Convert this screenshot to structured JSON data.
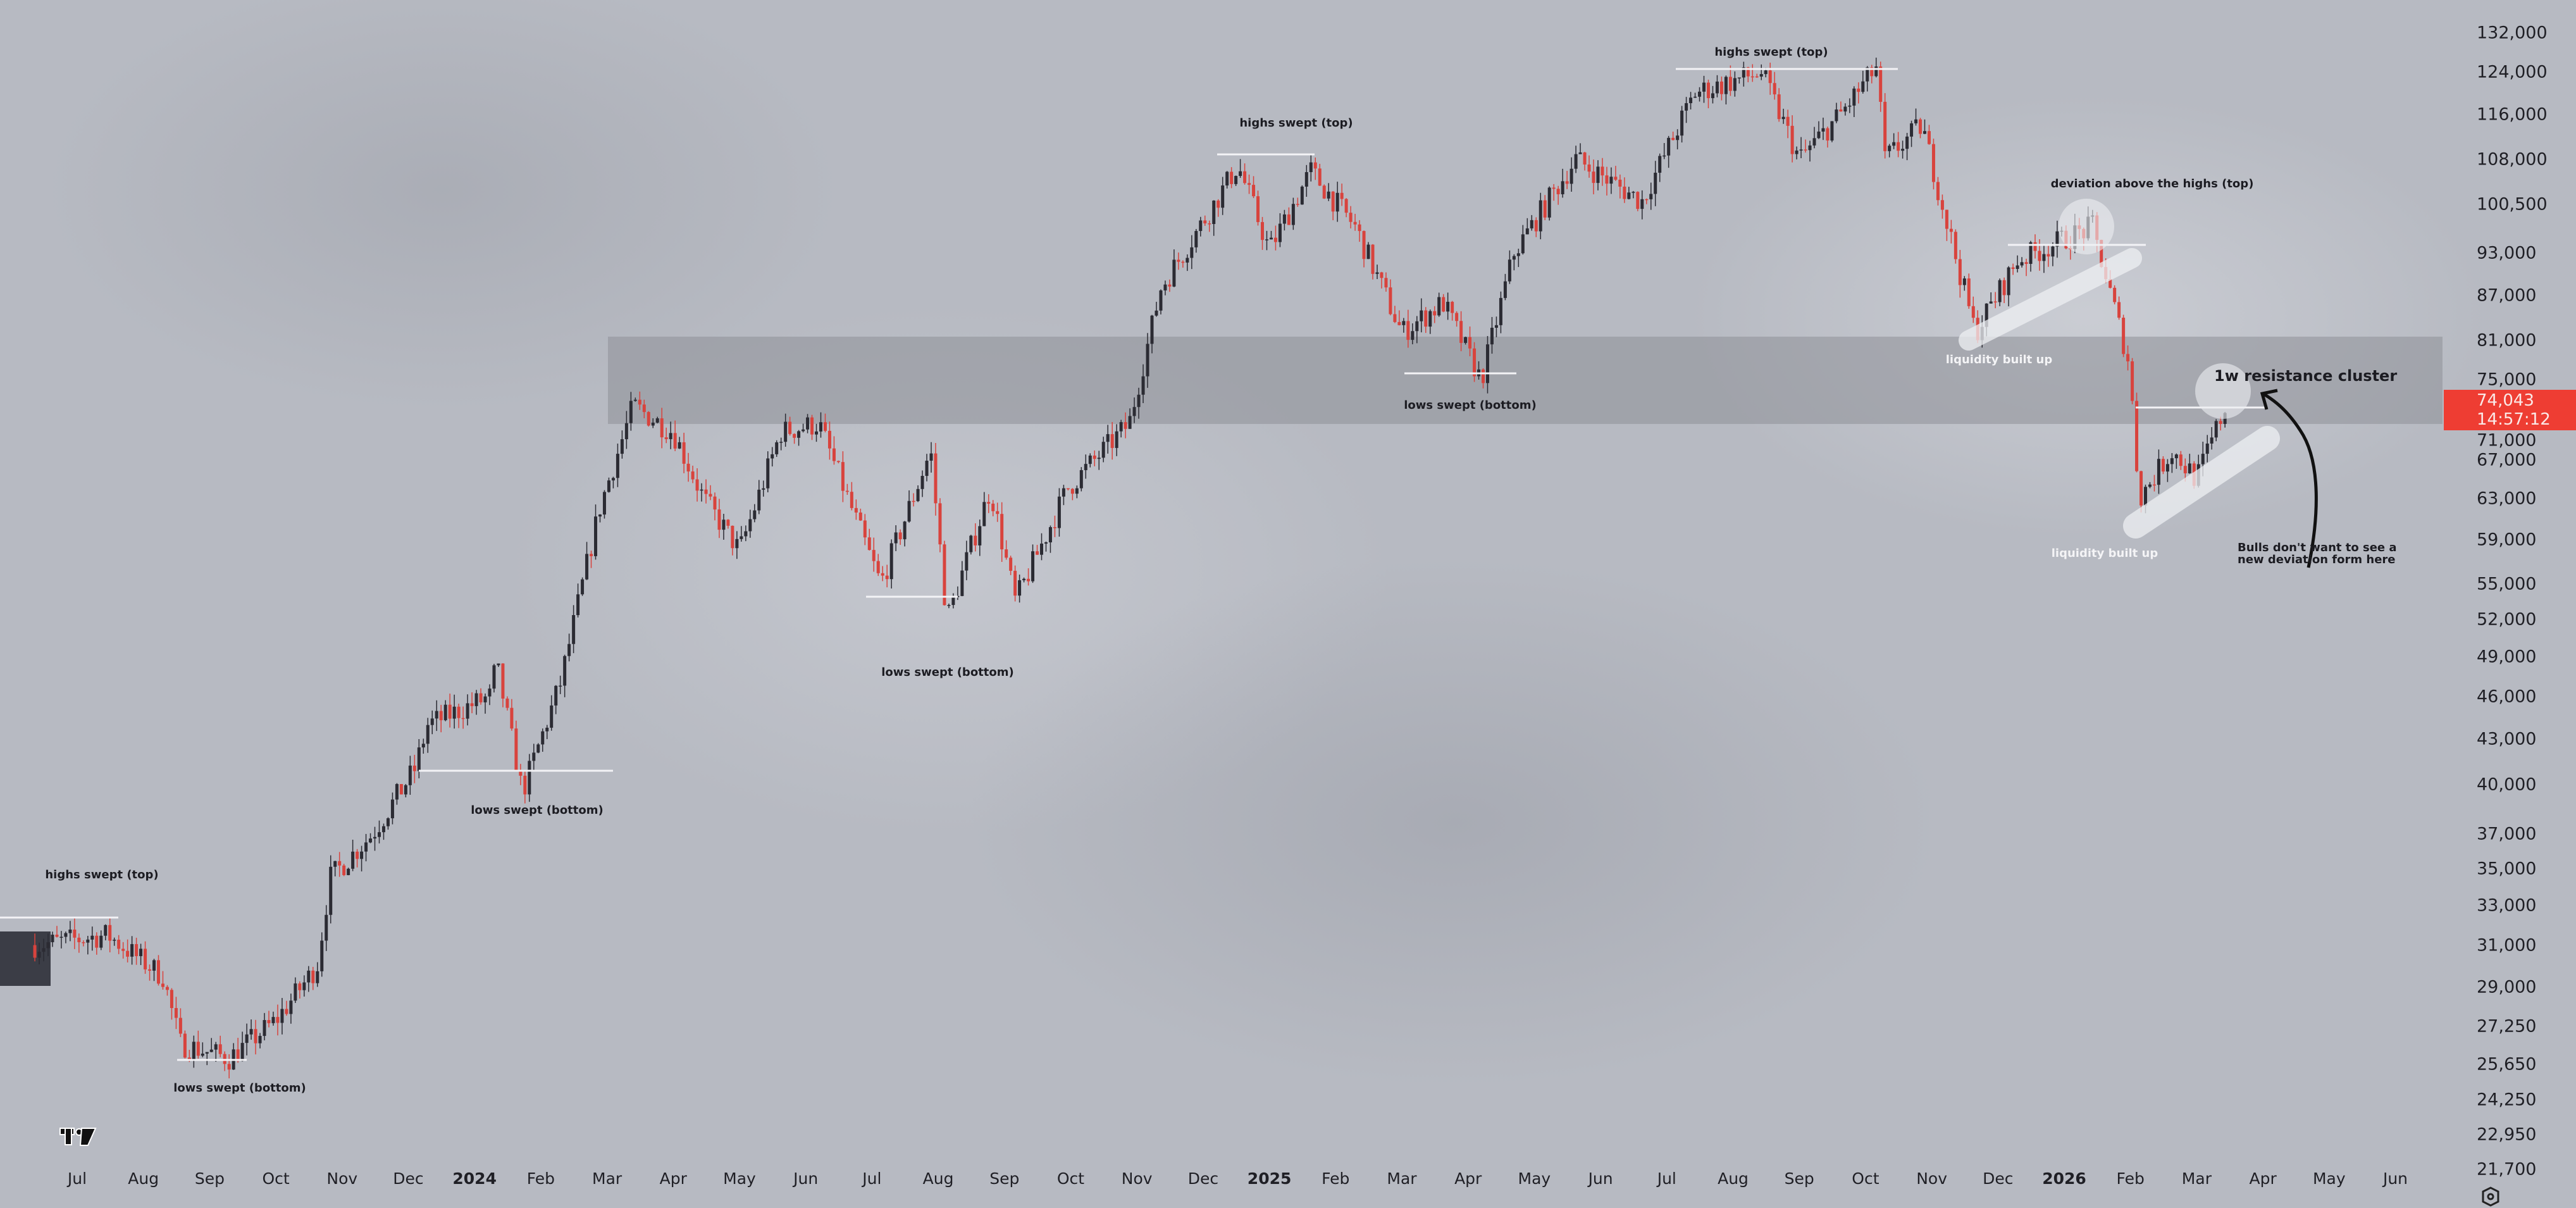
{
  "chart_data": {
    "type": "candlestick",
    "title": "",
    "xlabel": "",
    "ylabel": "",
    "y_scale": "log",
    "ylim": [
      21000,
      136000
    ],
    "grid": false,
    "colors": {
      "up": "#2b2b33",
      "down": "#d8433d",
      "current_price": "#ee3d33",
      "zone": "#8e9098"
    },
    "x_tick_labels": [
      "Jul",
      "Aug",
      "Sep",
      "Oct",
      "Nov",
      "Dec",
      "2024",
      "Feb",
      "Mar",
      "Apr",
      "May",
      "Jun",
      "Jul",
      "Aug",
      "Sep",
      "Oct",
      "Nov",
      "Dec",
      "2025",
      "Feb",
      "Mar",
      "Apr",
      "May",
      "Jun",
      "Jul",
      "Aug",
      "Sep",
      "Oct",
      "Nov",
      "Dec",
      "2026",
      "Feb",
      "Mar",
      "Apr",
      "May",
      "Jun"
    ],
    "y_tick_labels": [
      "132,000",
      "124,000",
      "116,000",
      "108,000",
      "100,500",
      "93,000",
      "87,000",
      "81,000",
      "75,000",
      "71,000",
      "67,000",
      "63,000",
      "59,000",
      "55,000",
      "52,000",
      "49,000",
      "46,000",
      "43,000",
      "40,000",
      "37,000",
      "35,000",
      "33,000",
      "31,000",
      "29,000",
      "27,250",
      "25,650",
      "24,250",
      "22,950",
      "21,700"
    ],
    "y_tick_values": [
      132000,
      124000,
      116000,
      108000,
      100500,
      93000,
      87000,
      81000,
      75000,
      71000,
      67000,
      63000,
      59000,
      55000,
      52000,
      49000,
      46000,
      43000,
      40000,
      37000,
      35000,
      33000,
      31000,
      29000,
      27250,
      25650,
      24250,
      22950,
      21700
    ],
    "price_path": [
      [
        "2023-06-12",
        31000
      ],
      [
        "2023-07-15",
        31500
      ],
      [
        "2023-08-10",
        29500
      ],
      [
        "2023-08-18",
        26500
      ],
      [
        "2023-09-10",
        25900
      ],
      [
        "2023-10-01",
        27500
      ],
      [
        "2023-10-20",
        30000
      ],
      [
        "2023-10-26",
        34500
      ],
      [
        "2023-11-15",
        37000
      ],
      [
        "2023-12-04",
        41000
      ],
      [
        "2023-12-10",
        44000
      ],
      [
        "2024-01-08",
        46000
      ],
      [
        "2024-01-11",
        48500
      ],
      [
        "2024-01-23",
        39500
      ],
      [
        "2024-02-10",
        47000
      ],
      [
        "2024-02-28",
        62000
      ],
      [
        "2024-03-13",
        73000
      ],
      [
        "2024-04-01",
        70000
      ],
      [
        "2024-04-15",
        63000
      ],
      [
        "2024-05-01",
        58000
      ],
      [
        "2024-05-20",
        70000
      ],
      [
        "2024-06-07",
        71000
      ],
      [
        "2024-07-05",
        55000
      ],
      [
        "2024-07-28",
        68000
      ],
      [
        "2024-08-05",
        52000
      ],
      [
        "2024-08-25",
        64000
      ],
      [
        "2024-09-06",
        53500
      ],
      [
        "2024-09-30",
        64000
      ],
      [
        "2024-10-28",
        71000
      ],
      [
        "2024-11-12",
        88000
      ],
      [
        "2024-12-05",
        100000
      ],
      [
        "2024-12-17",
        107000
      ],
      [
        "2025-01-01",
        93500
      ],
      [
        "2025-01-20",
        106000
      ],
      [
        "2025-02-10",
        97000
      ],
      [
        "2025-03-01",
        82000
      ],
      [
        "2025-03-20",
        86000
      ],
      [
        "2025-04-07",
        76000
      ],
      [
        "2025-04-22",
        93000
      ],
      [
        "2025-05-20",
        108000
      ],
      [
        "2025-06-20",
        101000
      ],
      [
        "2025-07-14",
        120000
      ],
      [
        "2025-08-14",
        124000
      ],
      [
        "2025-09-01",
        108000
      ],
      [
        "2025-09-20",
        116000
      ],
      [
        "2025-10-06",
        125000
      ],
      [
        "2025-10-10",
        108000
      ],
      [
        "2025-10-27",
        114000
      ],
      [
        "2025-11-21",
        82000
      ],
      [
        "2025-12-10",
        92000
      ],
      [
        "2026-01-14",
        97000
      ],
      [
        "2026-01-31",
        78000
      ],
      [
        "2026-02-05",
        63000
      ],
      [
        "2026-02-20",
        68000
      ],
      [
        "2026-03-01",
        65000
      ],
      [
        "2026-03-16",
        74043
      ]
    ],
    "current_price": {
      "value": "74,043",
      "countdown": "14:57:12"
    },
    "resistance_zone": {
      "from": 70500,
      "to": 82000,
      "label": "1w resistance cluster"
    },
    "annotations": [
      {
        "text": "highs swept (top)",
        "date": "2023-07-05",
        "level": 32500
      },
      {
        "text": "lows swept (bottom)",
        "date": "2023-09-05",
        "level": 25800
      },
      {
        "text": "lows swept (bottom)",
        "date": "2024-01-25",
        "level": 41000
      },
      {
        "text": "lows swept (bottom)",
        "date": "2024-08-05",
        "level": 54500
      },
      {
        "text": "highs swept (top)",
        "date": "2024-12-20",
        "level": 109000
      },
      {
        "text": "lows swept (bottom)",
        "date": "2025-04-06",
        "level": 77000
      },
      {
        "text": "highs swept (top)",
        "date": "2025-09-01",
        "level": 125000
      },
      {
        "text": "deviation above the highs (top)",
        "date": "2026-01-05",
        "level": 95000
      },
      {
        "text": "liquidity built up",
        "date": "2025-12-10",
        "level": 80000
      },
      {
        "text": "liquidity built up",
        "date": "2026-02-20",
        "level": 58000
      }
    ],
    "note": [
      "Bulls don't want to see a",
      "new deviation form here"
    ]
  }
}
